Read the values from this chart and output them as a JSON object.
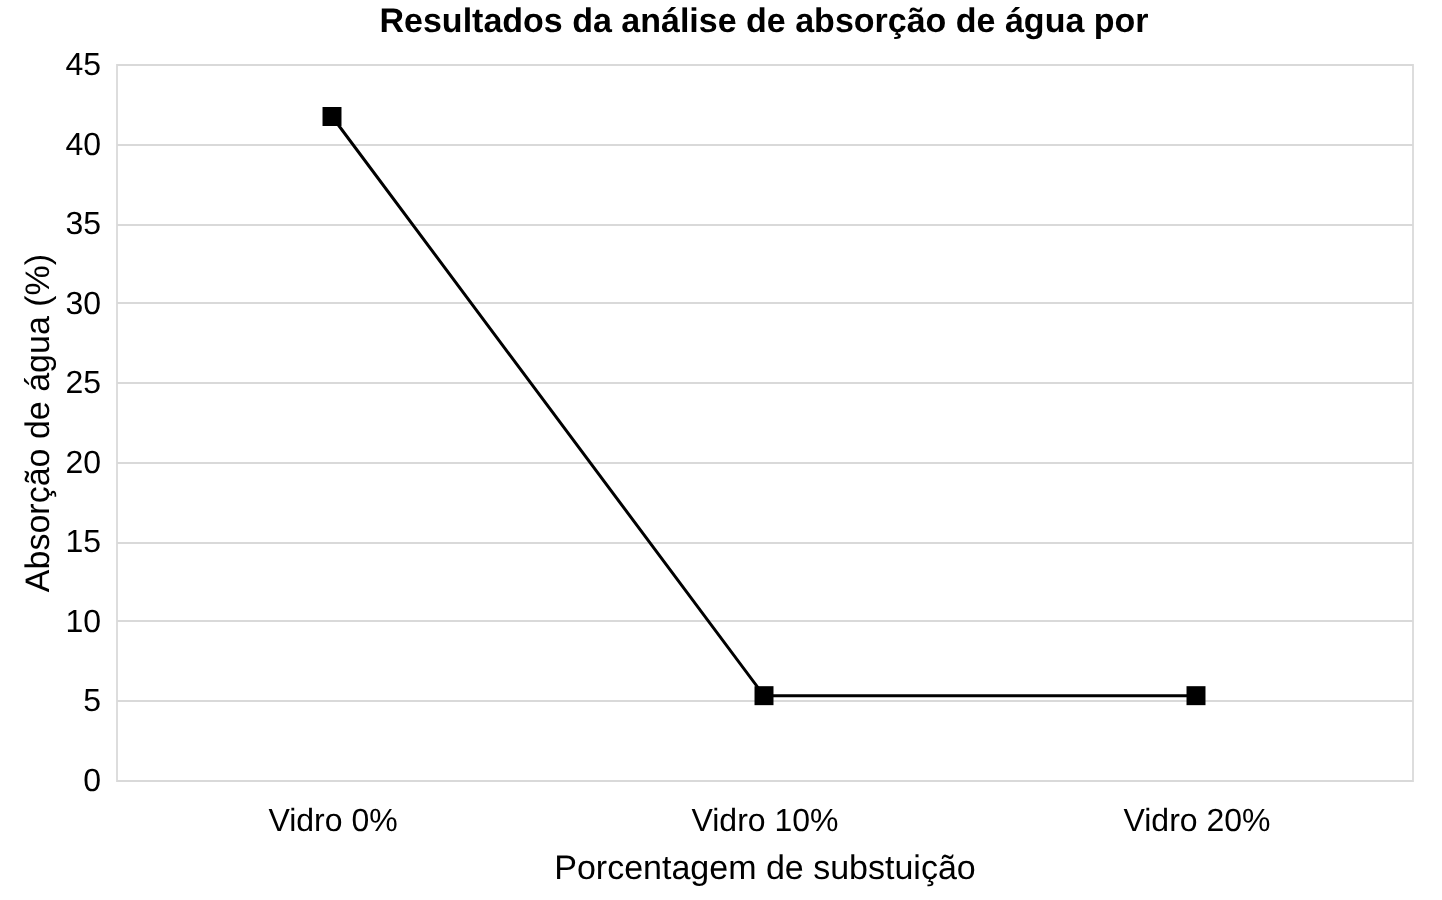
{
  "chart_data": {
    "type": "line",
    "title": "Resultados da análise de absorção de água por",
    "xlabel": "Porcentagem de substuição",
    "ylabel": "Absorção de água (%)",
    "categories": [
      "Vidro 0%",
      "Vidro 10%",
      "Vidro 20%"
    ],
    "series": [
      {
        "color": "#000000",
        "values": [
          41.7,
          5.3,
          5.3
        ]
      }
    ],
    "ylim": [
      0,
      45
    ],
    "yticks": [
      0,
      5,
      10,
      15,
      20,
      25,
      30,
      35,
      40,
      45
    ],
    "grid": "y",
    "marker": "square",
    "line_style": "solid"
  }
}
